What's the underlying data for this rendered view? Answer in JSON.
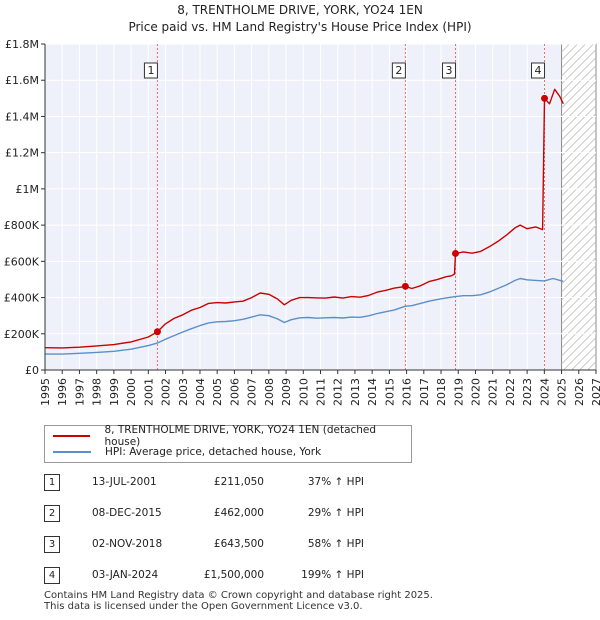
{
  "chart_data": {
    "type": "line",
    "title": "8, TRENTHOLME DRIVE, YORK, YO24 1EN",
    "subtitle": "Price paid vs. HM Land Registry's House Price Index (HPI)",
    "xlim": [
      1995,
      2027
    ],
    "ylim": [
      0,
      1800000
    ],
    "forecast_from": 2025.0,
    "y_ticks": [
      {
        "value": 0,
        "label": "£0"
      },
      {
        "value": 200000,
        "label": "£200K"
      },
      {
        "value": 400000,
        "label": "£400K"
      },
      {
        "value": 600000,
        "label": "£600K"
      },
      {
        "value": 800000,
        "label": "£800K"
      },
      {
        "value": 1000000,
        "label": "£1M"
      },
      {
        "value": 1200000,
        "label": "£1.2M"
      },
      {
        "value": 1400000,
        "label": "£1.4M"
      },
      {
        "value": 1600000,
        "label": "£1.6M"
      },
      {
        "value": 1800000,
        "label": "£1.8M"
      }
    ],
    "x_ticks": [
      "1995",
      "1996",
      "1997",
      "1998",
      "1999",
      "2000",
      "2001",
      "2002",
      "2003",
      "2004",
      "2005",
      "2006",
      "2007",
      "2008",
      "2009",
      "2010",
      "2011",
      "2012",
      "2013",
      "2014",
      "2015",
      "2016",
      "2017",
      "2018",
      "2019",
      "2020",
      "2021",
      "2022",
      "2023",
      "2024",
      "2025",
      "2026",
      "2027"
    ],
    "series": [
      {
        "name": "8, TRENTHOLME DRIVE, YORK, YO24 1EN (detached house)",
        "color": "#cc0000",
        "points": [
          [
            1995.0,
            123000
          ],
          [
            1996.0,
            122000
          ],
          [
            1997.0,
            126000
          ],
          [
            1998.0,
            133000
          ],
          [
            1999.0,
            140000
          ],
          [
            2000.0,
            155000
          ],
          [
            2001.0,
            182000
          ],
          [
            2001.53,
            211050
          ],
          [
            2002.0,
            255000
          ],
          [
            2002.5,
            285000
          ],
          [
            2003.0,
            305000
          ],
          [
            2003.5,
            330000
          ],
          [
            2004.0,
            345000
          ],
          [
            2004.5,
            368000
          ],
          [
            2005.0,
            372000
          ],
          [
            2005.5,
            370000
          ],
          [
            2006.0,
            376000
          ],
          [
            2006.5,
            380000
          ],
          [
            2007.0,
            400000
          ],
          [
            2007.5,
            425000
          ],
          [
            2008.0,
            418000
          ],
          [
            2008.5,
            392000
          ],
          [
            2008.9,
            360000
          ],
          [
            2009.3,
            385000
          ],
          [
            2009.8,
            400000
          ],
          [
            2010.3,
            400000
          ],
          [
            2010.8,
            398000
          ],
          [
            2011.3,
            397000
          ],
          [
            2011.8,
            403000
          ],
          [
            2012.3,
            397000
          ],
          [
            2012.8,
            405000
          ],
          [
            2013.3,
            402000
          ],
          [
            2013.8,
            412000
          ],
          [
            2014.3,
            430000
          ],
          [
            2014.8,
            440000
          ],
          [
            2015.3,
            452000
          ],
          [
            2015.7,
            458000
          ],
          [
            2015.93,
            462000
          ],
          [
            2016.3,
            450000
          ],
          [
            2016.8,
            465000
          ],
          [
            2017.3,
            488000
          ],
          [
            2017.8,
            500000
          ],
          [
            2018.3,
            515000
          ],
          [
            2018.6,
            520000
          ],
          [
            2018.78,
            530000
          ],
          [
            2018.84,
            643500
          ],
          [
            2019.3,
            652000
          ],
          [
            2019.8,
            645000
          ],
          [
            2020.3,
            655000
          ],
          [
            2020.8,
            680000
          ],
          [
            2021.3,
            710000
          ],
          [
            2021.8,
            745000
          ],
          [
            2022.3,
            785000
          ],
          [
            2022.6,
            800000
          ],
          [
            2023.0,
            780000
          ],
          [
            2023.5,
            790000
          ],
          [
            2023.9,
            775000
          ],
          [
            2024.01,
            1500000
          ],
          [
            2024.3,
            1470000
          ],
          [
            2024.6,
            1550000
          ],
          [
            2024.9,
            1510000
          ],
          [
            2025.1,
            1470000
          ]
        ]
      },
      {
        "name": "HPI: Average price, detached house, York",
        "color": "#5b8fc9",
        "points": [
          [
            1995.0,
            88000
          ],
          [
            1996.0,
            88000
          ],
          [
            1997.0,
            92000
          ],
          [
            1998.0,
            97000
          ],
          [
            1999.0,
            103000
          ],
          [
            2000.0,
            115000
          ],
          [
            2001.0,
            135000
          ],
          [
            2001.5,
            148000
          ],
          [
            2002.0,
            170000
          ],
          [
            2002.5,
            190000
          ],
          [
            2003.0,
            210000
          ],
          [
            2003.5,
            228000
          ],
          [
            2004.0,
            245000
          ],
          [
            2004.5,
            260000
          ],
          [
            2005.0,
            266000
          ],
          [
            2005.5,
            268000
          ],
          [
            2006.0,
            272000
          ],
          [
            2006.5,
            280000
          ],
          [
            2007.0,
            292000
          ],
          [
            2007.5,
            305000
          ],
          [
            2008.0,
            300000
          ],
          [
            2008.5,
            282000
          ],
          [
            2008.9,
            262000
          ],
          [
            2009.3,
            278000
          ],
          [
            2009.8,
            288000
          ],
          [
            2010.3,
            290000
          ],
          [
            2010.8,
            286000
          ],
          [
            2011.3,
            288000
          ],
          [
            2011.8,
            290000
          ],
          [
            2012.3,
            287000
          ],
          [
            2012.8,
            292000
          ],
          [
            2013.3,
            291000
          ],
          [
            2013.8,
            299000
          ],
          [
            2014.3,
            312000
          ],
          [
            2014.8,
            322000
          ],
          [
            2015.3,
            332000
          ],
          [
            2015.93,
            352000
          ],
          [
            2016.3,
            355000
          ],
          [
            2016.8,
            368000
          ],
          [
            2017.3,
            380000
          ],
          [
            2017.8,
            390000
          ],
          [
            2018.3,
            398000
          ],
          [
            2018.84,
            405000
          ],
          [
            2019.3,
            410000
          ],
          [
            2019.8,
            410000
          ],
          [
            2020.3,
            415000
          ],
          [
            2020.8,
            430000
          ],
          [
            2021.3,
            450000
          ],
          [
            2021.8,
            470000
          ],
          [
            2022.3,
            495000
          ],
          [
            2022.6,
            505000
          ],
          [
            2023.0,
            498000
          ],
          [
            2023.5,
            495000
          ],
          [
            2024.0,
            492000
          ],
          [
            2024.5,
            505000
          ],
          [
            2025.1,
            490000
          ]
        ]
      }
    ],
    "sales": [
      {
        "id": "1",
        "x": 2001.53,
        "price": 211050,
        "date": "13-JUL-2001",
        "price_label": "£211,050",
        "hpi_label": "37% ↑ HPI"
      },
      {
        "id": "2",
        "x": 2015.93,
        "price": 462000,
        "date": "08-DEC-2015",
        "price_label": "£462,000",
        "hpi_label": "29% ↑ HPI"
      },
      {
        "id": "3",
        "x": 2018.84,
        "price": 643500,
        "date": "02-NOV-2018",
        "price_label": "£643,500",
        "hpi_label": "58% ↑ HPI"
      },
      {
        "id": "4",
        "x": 2024.01,
        "price": 1500000,
        "date": "03-JAN-2024",
        "price_label": "£1,500,000",
        "hpi_label": "199% ↑ HPI"
      }
    ]
  },
  "legend": {
    "property_label": "8, TRENTHOLME DRIVE, YORK, YO24 1EN (detached house)",
    "hpi_label": "HPI: Average price, detached house, York",
    "property_color": "#cc0000",
    "hpi_color": "#5b8fc9"
  },
  "footer": {
    "line1": "Contains HM Land Registry data © Crown copyright and database right 2025.",
    "line2": "This data is licensed under the Open Government Licence v3.0."
  }
}
